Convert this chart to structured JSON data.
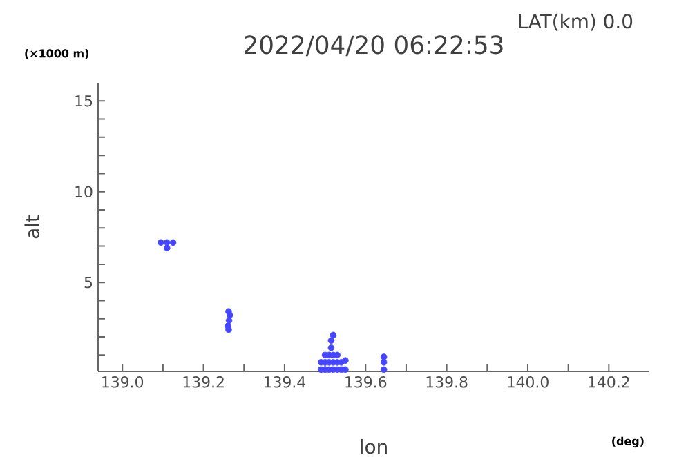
{
  "chart_data": {
    "type": "scatter",
    "title": "2022/04/20 06:22:53",
    "subtitle": "LAT(km) 0.0",
    "xlabel": "lon",
    "ylabel": "alt",
    "annotations": [
      "(×1000 m)",
      "(deg)"
    ],
    "x": [
      139.095,
      139.11,
      139.125,
      139.11,
      139.262,
      139.265,
      139.263,
      139.26,
      139.262,
      139.49,
      139.5,
      139.51,
      139.52,
      139.53,
      139.54,
      139.55,
      139.49,
      139.5,
      139.51,
      139.52,
      139.53,
      139.54,
      139.55,
      139.5,
      139.51,
      139.52,
      139.53,
      139.515,
      139.515,
      139.52,
      139.645,
      139.645,
      139.645
    ],
    "values": [
      7.2,
      7.2,
      7.2,
      6.9,
      3.4,
      3.2,
      2.9,
      2.6,
      2.4,
      0.2,
      0.2,
      0.2,
      0.2,
      0.2,
      0.2,
      0.2,
      0.6,
      0.6,
      0.6,
      0.6,
      0.6,
      0.6,
      0.7,
      1.0,
      1.0,
      1.0,
      1.0,
      1.4,
      1.8,
      2.1,
      0.2,
      0.6,
      0.9
    ],
    "color": "#4646ff",
    "xlim": [
      138.94,
      140.3
    ],
    "ylim": [
      0.1,
      16
    ],
    "xticks": [
      {
        "value": 139.0,
        "label": "139.0"
      },
      {
        "value": 139.1,
        "label": null
      },
      {
        "value": 139.2,
        "label": "139.2"
      },
      {
        "value": 139.3,
        "label": null
      },
      {
        "value": 139.4,
        "label": "139.4"
      },
      {
        "value": 139.5,
        "label": null
      },
      {
        "value": 139.6,
        "label": "139.6"
      },
      {
        "value": 139.7,
        "label": null
      },
      {
        "value": 139.8,
        "label": "139.8"
      },
      {
        "value": 139.9,
        "label": null
      },
      {
        "value": 140.0,
        "label": "140.0"
      },
      {
        "value": 140.1,
        "label": null
      },
      {
        "value": 140.2,
        "label": "140.2"
      }
    ],
    "yticks": [
      {
        "value": 1,
        "label": null
      },
      {
        "value": 2,
        "label": null
      },
      {
        "value": 3,
        "label": null
      },
      {
        "value": 4,
        "label": null
      },
      5,
      {
        "value": 6,
        "label": null
      },
      {
        "value": 7,
        "label": null
      },
      {
        "value": 8,
        "label": null
      },
      {
        "value": 9,
        "label": null
      },
      10,
      {
        "value": 11,
        "label": null
      },
      {
        "value": 12,
        "label": null
      },
      {
        "value": 13,
        "label": null
      },
      {
        "value": 14,
        "label": null
      },
      15
    ]
  }
}
